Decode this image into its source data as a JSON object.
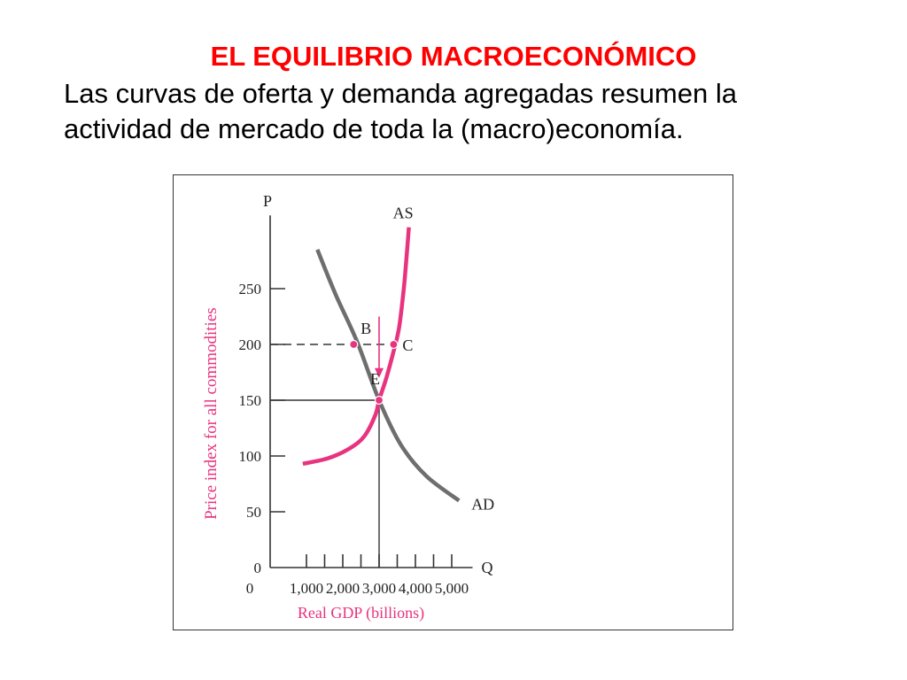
{
  "slide": {
    "title": "EL EQUILIBRIO MACROECONÓMICO",
    "text_lines": [
      "Las curvas de oferta y demanda agregadas resumen la",
      "actividad de mercado de toda la (macro)economía."
    ]
  },
  "chart_data": {
    "type": "line",
    "title": "",
    "xlabel": "Real GDP (billions)",
    "ylabel": "Price index for all commodities",
    "x_axis_symbol": "Q",
    "y_axis_symbol": "P",
    "xlim": [
      0,
      5500
    ],
    "ylim": [
      0,
      330
    ],
    "x_ticks": [
      1000,
      1500,
      2000,
      2500,
      3000,
      3500,
      4000,
      4500,
      5000
    ],
    "x_tick_labels": [
      {
        "value": 0,
        "label": "0"
      },
      {
        "value": 1000,
        "label": "1,000"
      },
      {
        "value": 2000,
        "label": "2,000"
      },
      {
        "value": 3000,
        "label": "3,000"
      },
      {
        "value": 4000,
        "label": "4,000"
      },
      {
        "value": 5000,
        "label": "5,000"
      }
    ],
    "y_ticks": [
      {
        "value": 0,
        "label": "0"
      },
      {
        "value": 50,
        "label": "50"
      },
      {
        "value": 100,
        "label": "100"
      },
      {
        "value": 150,
        "label": "150"
      },
      {
        "value": 200,
        "label": "200"
      },
      {
        "value": 250,
        "label": "250"
      }
    ],
    "grid": false,
    "series": [
      {
        "name": "AD",
        "color": "#6e6e6e",
        "points": [
          [
            1300,
            285
          ],
          [
            1800,
            245
          ],
          [
            2400,
            202
          ],
          [
            3000,
            150
          ],
          [
            3600,
            110
          ],
          [
            4300,
            82
          ],
          [
            5200,
            60
          ]
        ]
      },
      {
        "name": "AS",
        "color": "#e8337f",
        "points": [
          [
            900,
            93
          ],
          [
            1600,
            98
          ],
          [
            2200,
            107
          ],
          [
            2600,
            118
          ],
          [
            2900,
            137
          ],
          [
            3000,
            150
          ],
          [
            3200,
            170
          ],
          [
            3400,
            194
          ],
          [
            3550,
            215
          ],
          [
            3680,
            250
          ],
          [
            3760,
            280
          ],
          [
            3820,
            305
          ]
        ]
      }
    ],
    "points": [
      {
        "label": "B",
        "x": 2300,
        "y": 200
      },
      {
        "label": "C",
        "x": 3400,
        "y": 200
      },
      {
        "label": "E",
        "x": 3000,
        "y": 150
      }
    ],
    "guides": [
      {
        "kind": "dashed",
        "from": [
          0,
          200
        ],
        "to": [
          3400,
          200
        ]
      },
      {
        "kind": "solid",
        "from": [
          0,
          150
        ],
        "to": [
          3000,
          150
        ]
      },
      {
        "kind": "solid",
        "from": [
          3000,
          0
        ],
        "to": [
          3000,
          150
        ]
      }
    ],
    "arrow": {
      "x": 3000,
      "y_from": 225,
      "y_to": 170
    },
    "colors": {
      "accent": "#e8337f",
      "ad_curve": "#6e6e6e",
      "axis": "#333333"
    }
  }
}
